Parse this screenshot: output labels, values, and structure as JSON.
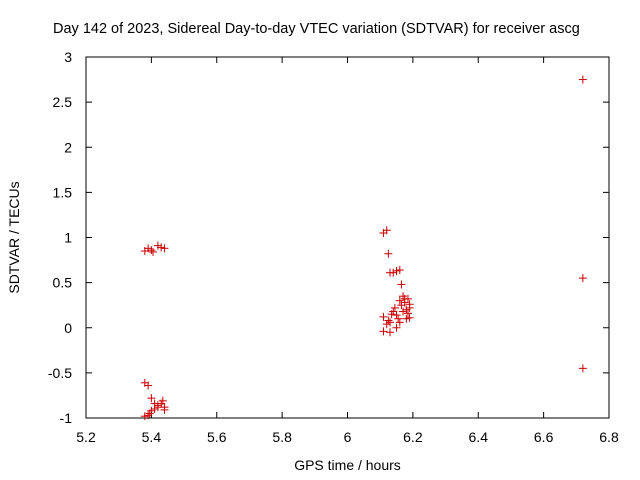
{
  "chart_data": {
    "type": "scatter",
    "title": "Day 142 of 2023, Sidereal Day-to-day VTEC variation (SDTVAR) for receiver ascg",
    "xlabel": "GPS time / hours",
    "ylabel": "SDTVAR / TECUs",
    "xlim": [
      5.2,
      6.8
    ],
    "ylim": [
      -1,
      3
    ],
    "xticks": [
      5.2,
      5.4,
      5.6,
      5.8,
      6.0,
      6.2,
      6.4,
      6.6,
      6.8
    ],
    "xtick_labels": [
      "5.2",
      "5.4",
      "5.6",
      "5.8",
      "6",
      "6.2",
      "6.4",
      "6.6",
      "6.8"
    ],
    "yticks": [
      -1,
      -0.5,
      0,
      0.5,
      1,
      1.5,
      2,
      2.5,
      3
    ],
    "ytick_labels": [
      "-1",
      "-0.5",
      "0",
      "0.5",
      "1",
      "1.5",
      "2",
      "2.5",
      "3"
    ],
    "grid": false,
    "marker": "+",
    "marker_color": "#cc0000",
    "series": [
      {
        "name": "SDTVAR",
        "points": [
          [
            5.38,
            0.85
          ],
          [
            5.39,
            0.88
          ],
          [
            5.4,
            0.86
          ],
          [
            5.405,
            0.84
          ],
          [
            5.42,
            0.91
          ],
          [
            5.43,
            0.89
          ],
          [
            5.44,
            0.88
          ],
          [
            5.38,
            -0.61
          ],
          [
            5.39,
            -0.64
          ],
          [
            5.4,
            -0.78
          ],
          [
            5.41,
            -0.84
          ],
          [
            5.42,
            -0.86
          ],
          [
            5.43,
            -0.84
          ],
          [
            5.435,
            -0.81
          ],
          [
            5.44,
            -0.88
          ],
          [
            5.44,
            -0.91
          ],
          [
            5.42,
            -0.88
          ],
          [
            5.41,
            -0.9
          ],
          [
            5.4,
            -0.92
          ],
          [
            5.395,
            -0.95
          ],
          [
            5.39,
            -0.97
          ],
          [
            5.38,
            -0.98
          ],
          [
            6.11,
            1.05
          ],
          [
            6.12,
            1.08
          ],
          [
            6.125,
            0.82
          ],
          [
            6.13,
            0.61
          ],
          [
            6.14,
            0.61
          ],
          [
            6.15,
            0.63
          ],
          [
            6.16,
            0.64
          ],
          [
            6.165,
            0.48
          ],
          [
            6.11,
            0.12
          ],
          [
            6.12,
            0.04
          ],
          [
            6.125,
            0.08
          ],
          [
            6.13,
            0.06
          ],
          [
            6.135,
            0.15
          ],
          [
            6.14,
            0.18
          ],
          [
            6.145,
            0.22
          ],
          [
            6.15,
            0.14
          ],
          [
            6.155,
            0.1
          ],
          [
            6.16,
            0.3
          ],
          [
            6.165,
            0.25
          ],
          [
            6.17,
            0.35
          ],
          [
            6.175,
            0.28
          ],
          [
            6.18,
            0.2
          ],
          [
            6.185,
            0.32
          ],
          [
            6.19,
            0.26
          ],
          [
            6.19,
            0.22
          ],
          [
            6.185,
            0.16
          ],
          [
            6.175,
            0.32
          ],
          [
            6.18,
            0.1
          ],
          [
            6.19,
            0.11
          ],
          [
            6.11,
            -0.04
          ],
          [
            6.13,
            -0.05
          ],
          [
            6.15,
            0.0
          ],
          [
            6.16,
            0.06
          ],
          [
            6.17,
            0.18
          ],
          [
            6.72,
            2.75
          ],
          [
            6.72,
            0.55
          ],
          [
            6.72,
            -0.45
          ]
        ]
      }
    ]
  }
}
